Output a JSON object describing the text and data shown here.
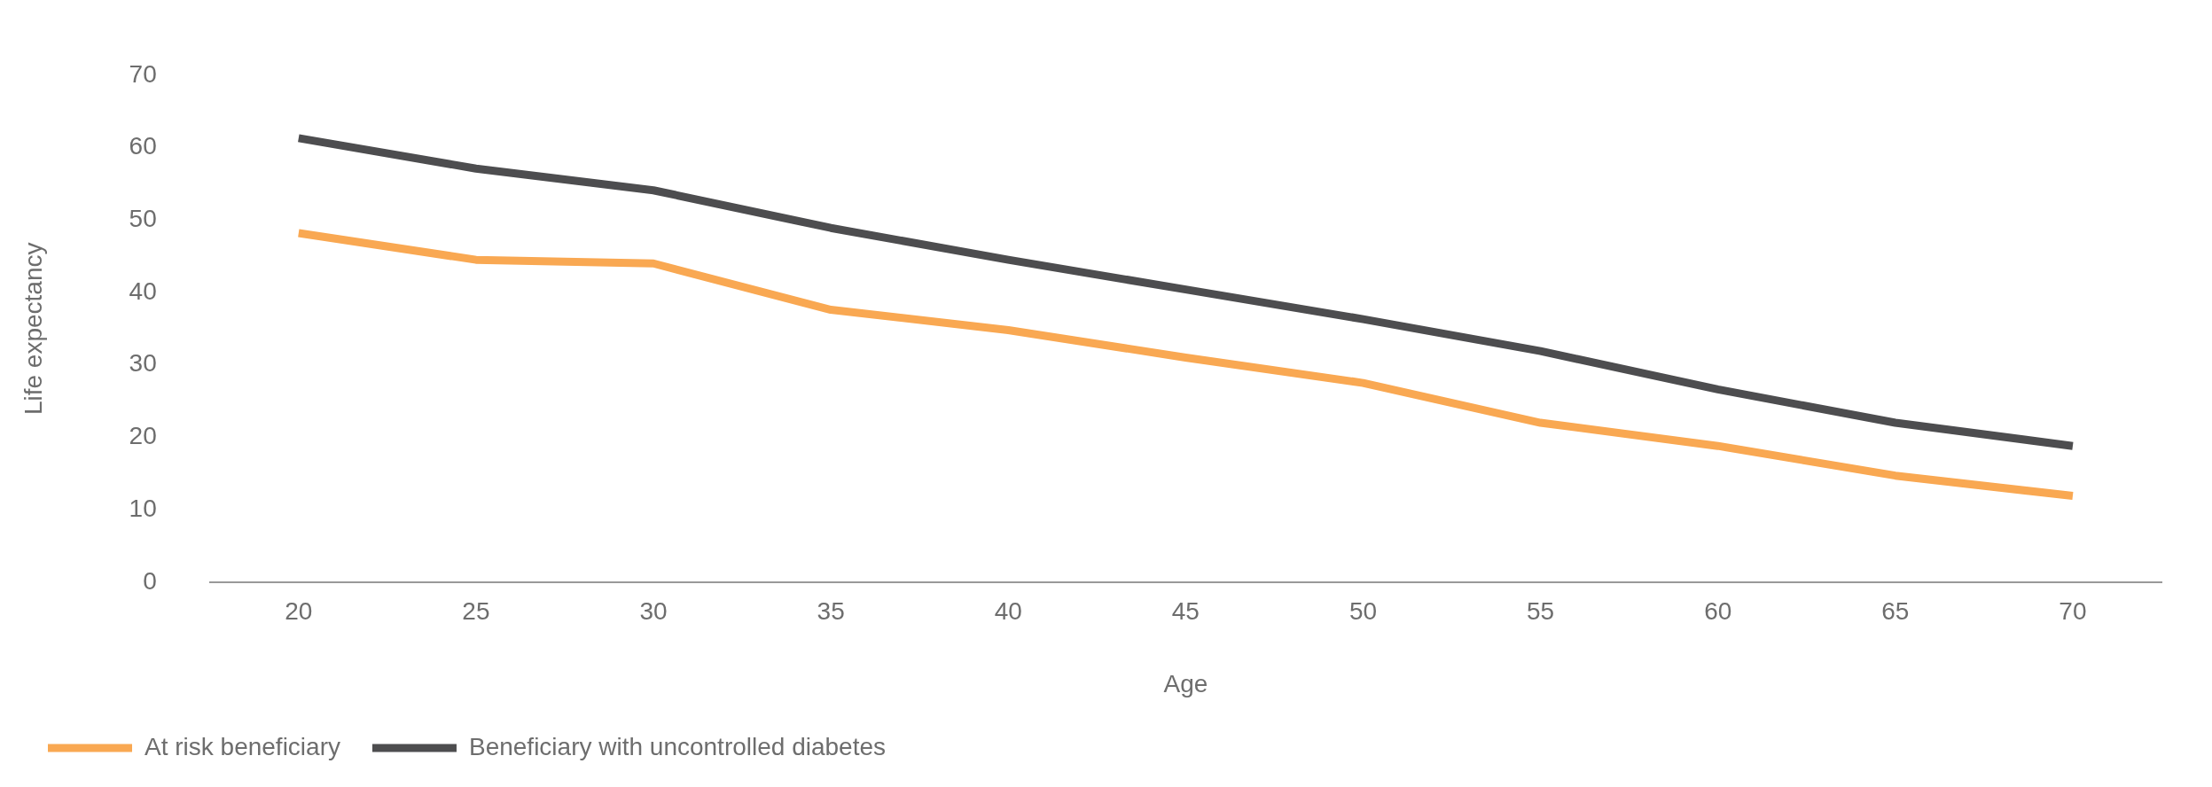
{
  "chart_data": {
    "type": "line",
    "xlabel": "Age",
    "ylabel": "Life expectancy",
    "categories": [
      "20",
      "25",
      "30",
      "35",
      "40",
      "45",
      "50",
      "55",
      "60",
      "65",
      "70"
    ],
    "series": [
      {
        "name": "At risk beneficiary",
        "color": "#f9a852",
        "values": [
          48.2,
          44.5,
          44.0,
          37.6,
          34.8,
          31.0,
          27.5,
          22.0,
          18.8,
          14.7,
          11.9
        ]
      },
      {
        "name": "Beneficiary with uncontrolled diabetes",
        "color": "#4d4d4f",
        "values": [
          61.3,
          57.1,
          54.1,
          48.9,
          44.5,
          40.4,
          36.3,
          31.9,
          26.6,
          22.0,
          18.8
        ]
      }
    ],
    "ylim": [
      0,
      70
    ],
    "yticks": [
      0,
      10,
      20,
      30,
      40,
      50,
      60,
      70
    ],
    "grid": false,
    "legend": "bottom left",
    "marker": "none",
    "line_style": "solid"
  }
}
